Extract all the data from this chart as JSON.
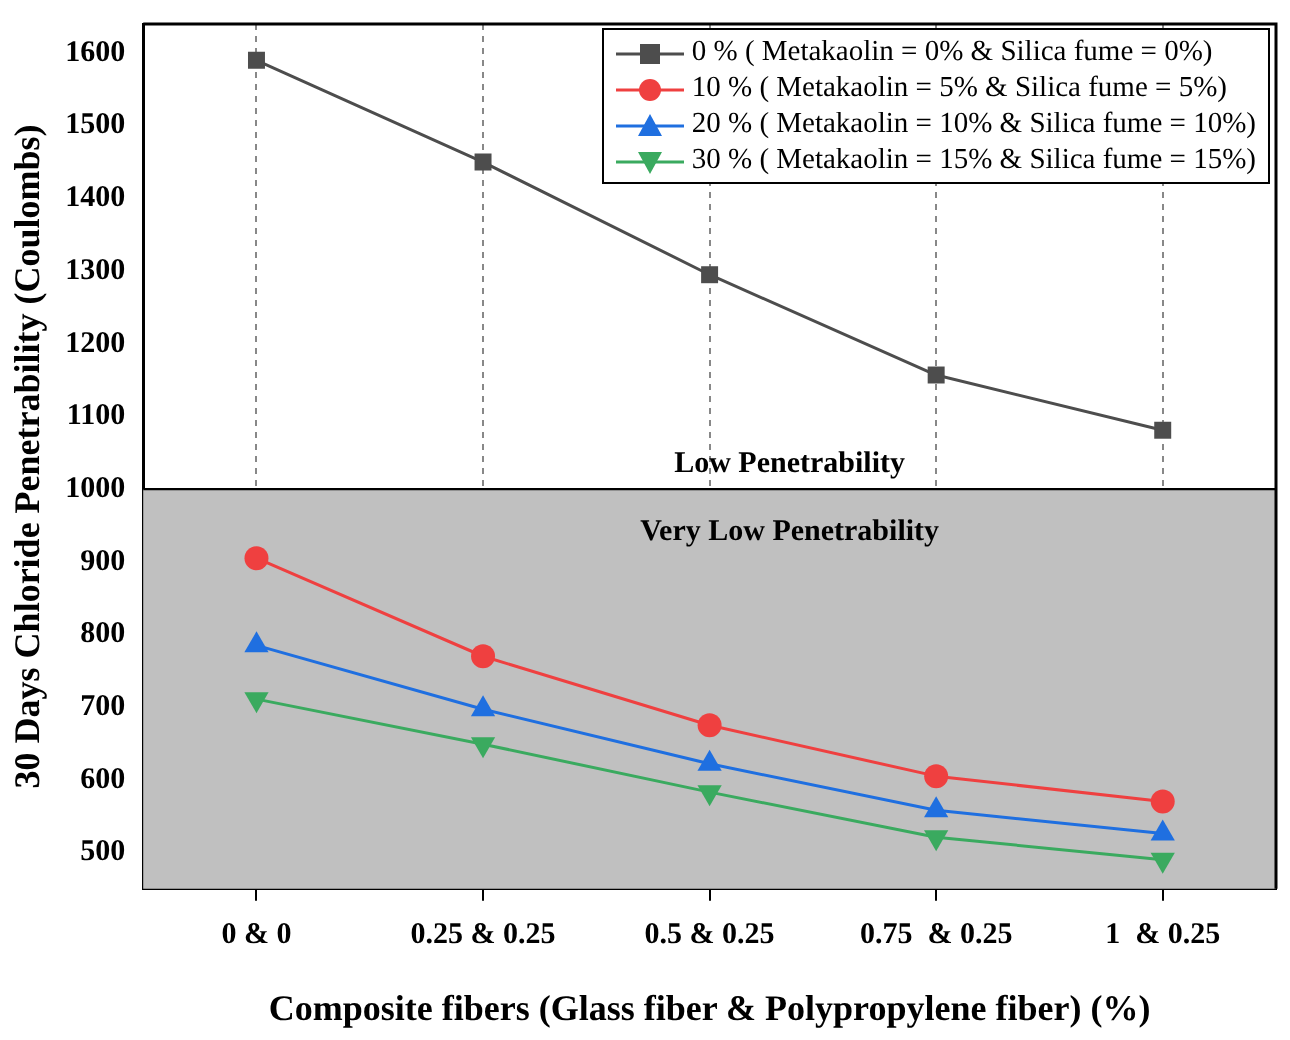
{
  "chart_data": {
    "type": "line",
    "xlabel": "Composite fibers (Glass fiber & Polypropylene fiber) (%)",
    "ylabel": "30 Days Chloride Penetrability (Coulombs)",
    "categories": [
      "0 & 0",
      "0.25 & 0.25",
      "0.5 & 0.25",
      "0.75  & 0.25",
      "1  & 0.25"
    ],
    "series": [
      {
        "name": "0 % ( Metakaolin = 0% & Silica fume = 0%)",
        "color": "#4d4d4d",
        "marker": "square",
        "values": [
          1590,
          1450,
          1295,
          1157,
          1081
        ]
      },
      {
        "name": "10 % ( Metakaolin = 5% & Silica fume = 5%)",
        "color": "#ef4040",
        "marker": "circle",
        "values": [
          905,
          770,
          675,
          605,
          570
        ]
      },
      {
        "name": "20 % ( Metakaolin = 10% & Silica fume = 10%)",
        "color": "#1f6fe0",
        "marker": "triangle",
        "values": [
          785,
          697,
          622,
          558,
          526
        ]
      },
      {
        "name": "30 % ( Metakaolin = 15% & Silica fume = 15%)",
        "color": "#3aaa5f",
        "marker": "triangle-down",
        "values": [
          711,
          649,
          583,
          521,
          490
        ]
      }
    ],
    "ylim": [
      450,
      1640
    ],
    "yticks": [
      500,
      600,
      700,
      800,
      900,
      1000,
      1100,
      1200,
      1300,
      1400,
      1500,
      1600
    ],
    "grid": "x",
    "legend": "top right",
    "line_style": "solid",
    "bands": [
      {
        "axis": "y",
        "from": 450,
        "to": 1000,
        "label": "Very Low Penetrability",
        "color": "#c0c0c0"
      }
    ],
    "ref_lines": [
      {
        "axis": "y",
        "value": 1000,
        "label": "Low Penetrability",
        "color": "#000000"
      }
    ]
  }
}
